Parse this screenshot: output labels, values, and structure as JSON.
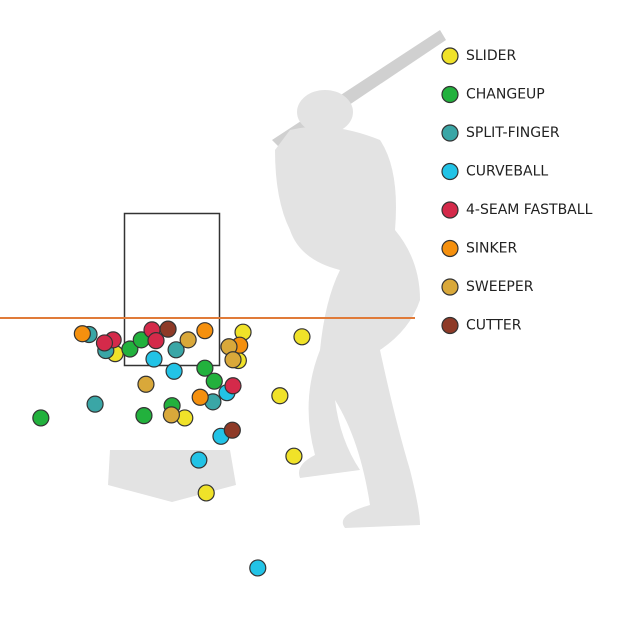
{
  "chart_data": {
    "type": "scatter",
    "xlim": [
      -2.57,
      6.69
    ],
    "ylim": [
      -1.82,
      6.28
    ],
    "series": [
      {
        "name": "SLIDER",
        "color": "#f0e229",
        "x": [
          1.06,
          1.94,
          0.99,
          -0.85,
          1.61,
          0.19,
          1.82,
          0.51
        ],
        "values": [
          1.94,
          1.88,
          1.57,
          1.66,
          1.11,
          0.82,
          0.32,
          -0.16
        ]
      },
      {
        "name": "CHANGEUP",
        "color": "#22b13d",
        "x": [
          -1.96,
          -0.63,
          -0.46,
          0.49,
          0.63,
          0,
          -0.42
        ],
        "values": [
          0.82,
          1.72,
          1.84,
          1.47,
          1.3,
          0.98,
          0.85
        ]
      },
      {
        "name": "SPLIT-FINGER",
        "color": "#3aa6a6",
        "x": [
          -1.24,
          -0.99,
          0.06,
          0.61,
          -1.15
        ],
        "values": [
          1.91,
          1.7,
          1.71,
          1.03,
          1.0
        ]
      },
      {
        "name": "CURVEBALL",
        "color": "#22c3e6",
        "x": [
          -0.27,
          0.03,
          0.82,
          0.73,
          0.4,
          1.28
        ],
        "values": [
          1.59,
          1.43,
          1.15,
          0.58,
          0.27,
          -1.14
        ]
      },
      {
        "name": "4-SEAM FASTBALL",
        "color": "#d42a4a",
        "x": [
          -0.88,
          -1.01,
          -0.3,
          -0.24,
          0.91
        ],
        "values": [
          1.84,
          1.8,
          1.97,
          1.83,
          1.24
        ]
      },
      {
        "name": "SINKER",
        "color": "#f5900e",
        "x": [
          -1.34,
          0.49,
          1.01,
          0.42
        ],
        "values": [
          1.92,
          1.96,
          1.77,
          1.09
        ]
      },
      {
        "name": "SWEEPER",
        "color": "#d9a83a",
        "x": [
          0.24,
          0.85,
          -0.39,
          -0.01,
          0.91
        ],
        "values": [
          1.84,
          1.75,
          1.26,
          0.86,
          1.58
        ]
      },
      {
        "name": "CUTTER",
        "color": "#8e3a27",
        "x": [
          -0.06,
          0.9
        ],
        "values": [
          1.98,
          0.66
        ]
      }
    ]
  }
}
